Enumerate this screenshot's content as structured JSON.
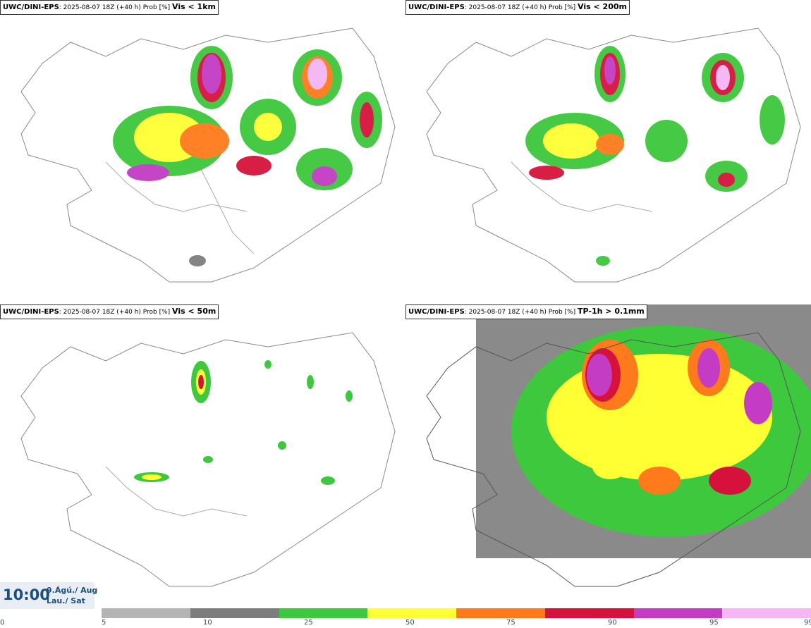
{
  "panels": [
    {
      "model": "UWC/DINI-EPS",
      "info": ": 2025-08-07 18Z (+40 h) Prob [%]",
      "field": "Vis < 1km"
    },
    {
      "model": "UWC/DINI-EPS",
      "info": ": 2025-08-07 18Z (+40 h) Prob [%]",
      "field": "Vis < 200m"
    },
    {
      "model": "UWC/DINI-EPS",
      "info": ": 2025-08-07 18Z (+40 h) Prob [%]",
      "field": "Vis < 50m"
    },
    {
      "model": "UWC/DINI-EPS",
      "info": ": 2025-08-07 18Z (+40 h) Prob [%]",
      "field": "TP-1h > 0.1mm"
    }
  ],
  "valid_time": {
    "time": "10:00",
    "date_line1": "9.Ágú./ Aug",
    "date_line2": "Lau./ Sat"
  },
  "colorbar": {
    "ticks": [
      "0",
      "5",
      "10",
      "25",
      "50",
      "75",
      "90",
      "95",
      "99"
    ],
    "colors": [
      "#b4b4b4",
      "#7d7d7d",
      "#3dc83d",
      "#ffff33",
      "#ff7a1a",
      "#d6123c",
      "#c43cc4",
      "#f4b6f4"
    ]
  }
}
